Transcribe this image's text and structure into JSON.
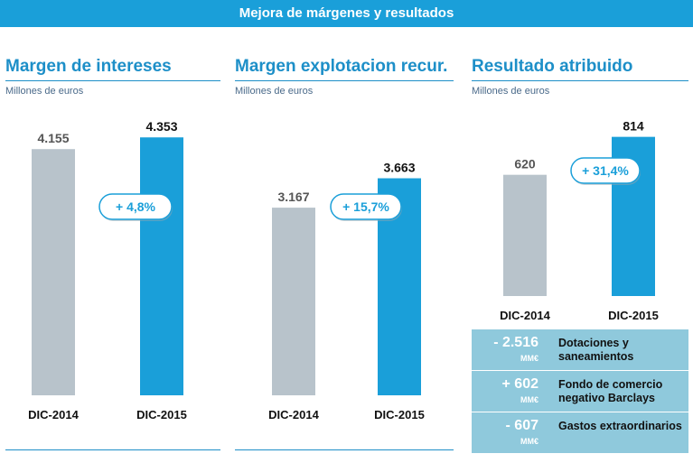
{
  "banner": {
    "title": "Mejora de márgenes y resultados"
  },
  "colors": {
    "accent": "#1a9fd9",
    "gray_bar": "#b8c3cb",
    "title_blue": "#1d8fc8",
    "legend_bg": "#8fc9dc"
  },
  "chart_data": [
    {
      "type": "bar",
      "title": "Margen de intereses",
      "subtitle": "Millones de euros",
      "categories": [
        "DIC-2014",
        "DIC-2015"
      ],
      "values": [
        4155,
        4353
      ],
      "value_labels": [
        "4.155",
        "4.353"
      ],
      "change_label": "+ 4,8%",
      "ylim": [
        0,
        4600
      ]
    },
    {
      "type": "bar",
      "title": "Margen explotacion recur.",
      "subtitle": "Millones de euros",
      "categories": [
        "DIC-2014",
        "DIC-2015"
      ],
      "values": [
        3167,
        3663
      ],
      "value_labels": [
        "3.167",
        "3.663"
      ],
      "change_label": "+ 15,7%",
      "ylim": [
        0,
        4600
      ]
    },
    {
      "type": "bar",
      "title": "Resultado atribuido",
      "subtitle": "Millones de euros",
      "categories": [
        "DIC-2014",
        "DIC-2015"
      ],
      "values": [
        620,
        814
      ],
      "value_labels": [
        "620",
        "814"
      ],
      "change_label": "+ 31,4%",
      "ylim": [
        0,
        900
      ]
    }
  ],
  "adjustments": [
    {
      "value": "- 2.516",
      "unit": "MM€",
      "label": "Dotaciones y saneamientos"
    },
    {
      "value": "+ 602",
      "unit": "MM€",
      "label": "Fondo de comercio negativo Barclays"
    },
    {
      "value": "- 607",
      "unit": "MM€",
      "label": "Gastos extraordinarios"
    }
  ]
}
